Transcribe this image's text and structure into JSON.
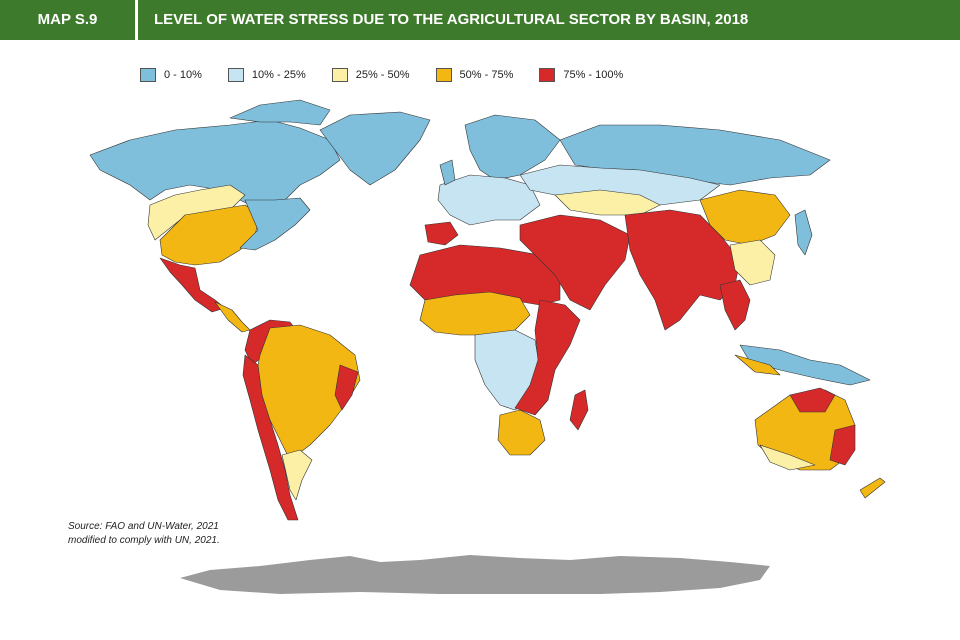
{
  "header": {
    "tag": "MAP S.9",
    "title": "LEVEL OF WATER STRESS DUE TO THE AGRICULTURAL SECTOR BY BASIN, 2018"
  },
  "legend": [
    {
      "label": "0 - 10%",
      "color": "#7fbfdc"
    },
    {
      "label": "10% - 25%",
      "color": "#c7e4f2"
    },
    {
      "label": "25% - 50%",
      "color": "#fbf0a6"
    },
    {
      "label": "50% - 75%",
      "color": "#f2b712"
    },
    {
      "label": "75% - 100%",
      "color": "#d62a2a"
    }
  ],
  "antarctica_color": "#9b9b9b",
  "source": {
    "line1": "Source: FAO and UN-Water, 2021",
    "line2": "modified to comply with UN, 2021."
  }
}
